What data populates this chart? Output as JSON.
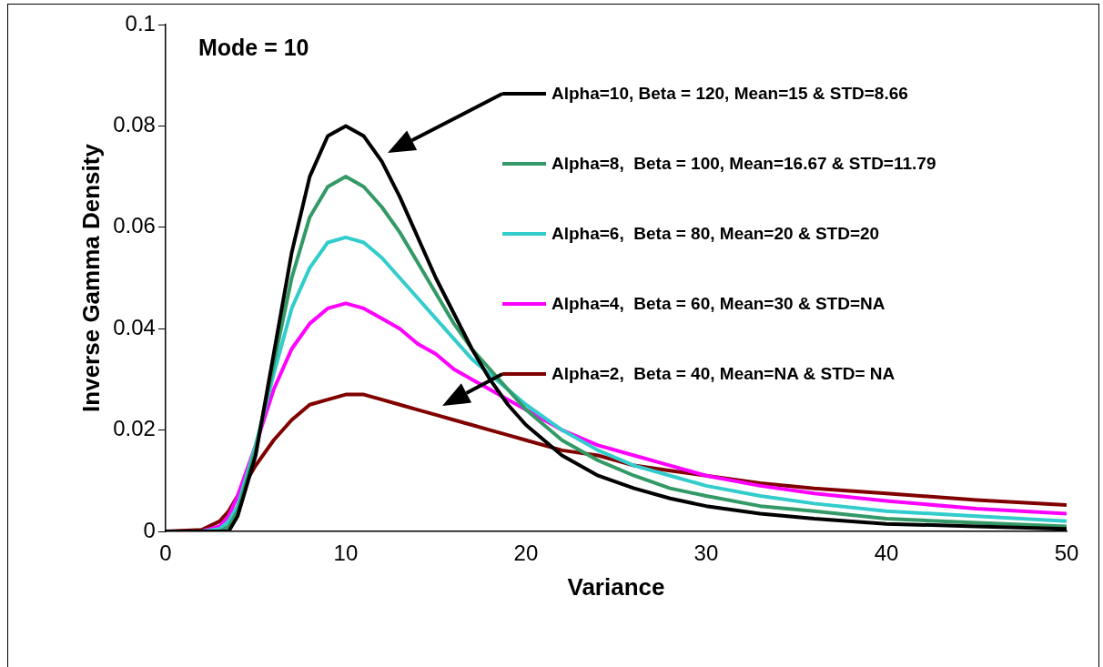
{
  "chart_data": {
    "type": "line",
    "xlabel": "Variance",
    "ylabel": "Inverse Gamma Density",
    "x": [
      0,
      2,
      3,
      3.5,
      4,
      5,
      6,
      7,
      8,
      9,
      10,
      11,
      12,
      13,
      14,
      15,
      16,
      17,
      18,
      19,
      20,
      22,
      24,
      26,
      28,
      30,
      33,
      36,
      40,
      45,
      50
    ],
    "series": [
      {
        "name": "Alpha=10, Beta = 120, Mean=15 & STD=8.66",
        "color": "#000000",
        "values": [
          0,
          0,
          0,
          0,
          0.003,
          0.015,
          0.035,
          0.055,
          0.07,
          0.078,
          0.08,
          0.078,
          0.073,
          0.066,
          0.058,
          0.05,
          0.043,
          0.036,
          0.03,
          0.025,
          0.021,
          0.015,
          0.011,
          0.0085,
          0.0065,
          0.005,
          0.0035,
          0.0025,
          0.0015,
          0.001,
          0.0005
        ]
      },
      {
        "name": "Alpha=8,  Beta = 100, Mean=16.67 & STD=11.79",
        "color": "#339966",
        "values": [
          0,
          0,
          0,
          0.001,
          0.004,
          0.016,
          0.033,
          0.05,
          0.062,
          0.068,
          0.07,
          0.068,
          0.064,
          0.059,
          0.053,
          0.047,
          0.041,
          0.036,
          0.032,
          0.028,
          0.024,
          0.018,
          0.014,
          0.011,
          0.0085,
          0.007,
          0.005,
          0.004,
          0.0025,
          0.0017,
          0.001
        ]
      },
      {
        "name": "Alpha=6,  Beta = 80, Mean=20 & STD=20",
        "color": "#33cccc",
        "values": [
          0,
          0,
          0.0005,
          0.002,
          0.005,
          0.017,
          0.031,
          0.044,
          0.052,
          0.057,
          0.058,
          0.057,
          0.054,
          0.05,
          0.046,
          0.042,
          0.038,
          0.034,
          0.031,
          0.028,
          0.025,
          0.02,
          0.016,
          0.013,
          0.011,
          0.009,
          0.007,
          0.0055,
          0.004,
          0.003,
          0.002
        ]
      },
      {
        "name": "Alpha=4,  Beta = 60, Mean=30 & STD=NA",
        "color": "#ff00ff",
        "values": [
          0,
          0,
          0.001,
          0.003,
          0.007,
          0.017,
          0.028,
          0.036,
          0.041,
          0.044,
          0.045,
          0.044,
          0.042,
          0.04,
          0.037,
          0.035,
          0.032,
          0.03,
          0.028,
          0.026,
          0.024,
          0.02,
          0.017,
          0.015,
          0.013,
          0.011,
          0.009,
          0.0075,
          0.006,
          0.0045,
          0.0035
        ]
      },
      {
        "name": "Alpha=2,  Beta = 40, Mean=NA & STD= NA",
        "color": "#800000",
        "values": [
          0,
          0.0003,
          0.002,
          0.004,
          0.007,
          0.013,
          0.018,
          0.022,
          0.025,
          0.026,
          0.027,
          0.027,
          0.026,
          0.025,
          0.024,
          0.023,
          0.022,
          0.021,
          0.02,
          0.019,
          0.018,
          0.016,
          0.015,
          0.013,
          0.012,
          0.011,
          0.0095,
          0.0085,
          0.0075,
          0.0062,
          0.0052
        ]
      }
    ],
    "xlim": [
      0,
      50
    ],
    "xticks": [
      0,
      10,
      20,
      30,
      40,
      50
    ],
    "ylim": [
      0,
      0.1
    ],
    "yticks": [
      0,
      0.02,
      0.04,
      0.06,
      0.08,
      0.1
    ],
    "legend": "top right",
    "annotations": [
      "Mode = 10"
    ]
  }
}
